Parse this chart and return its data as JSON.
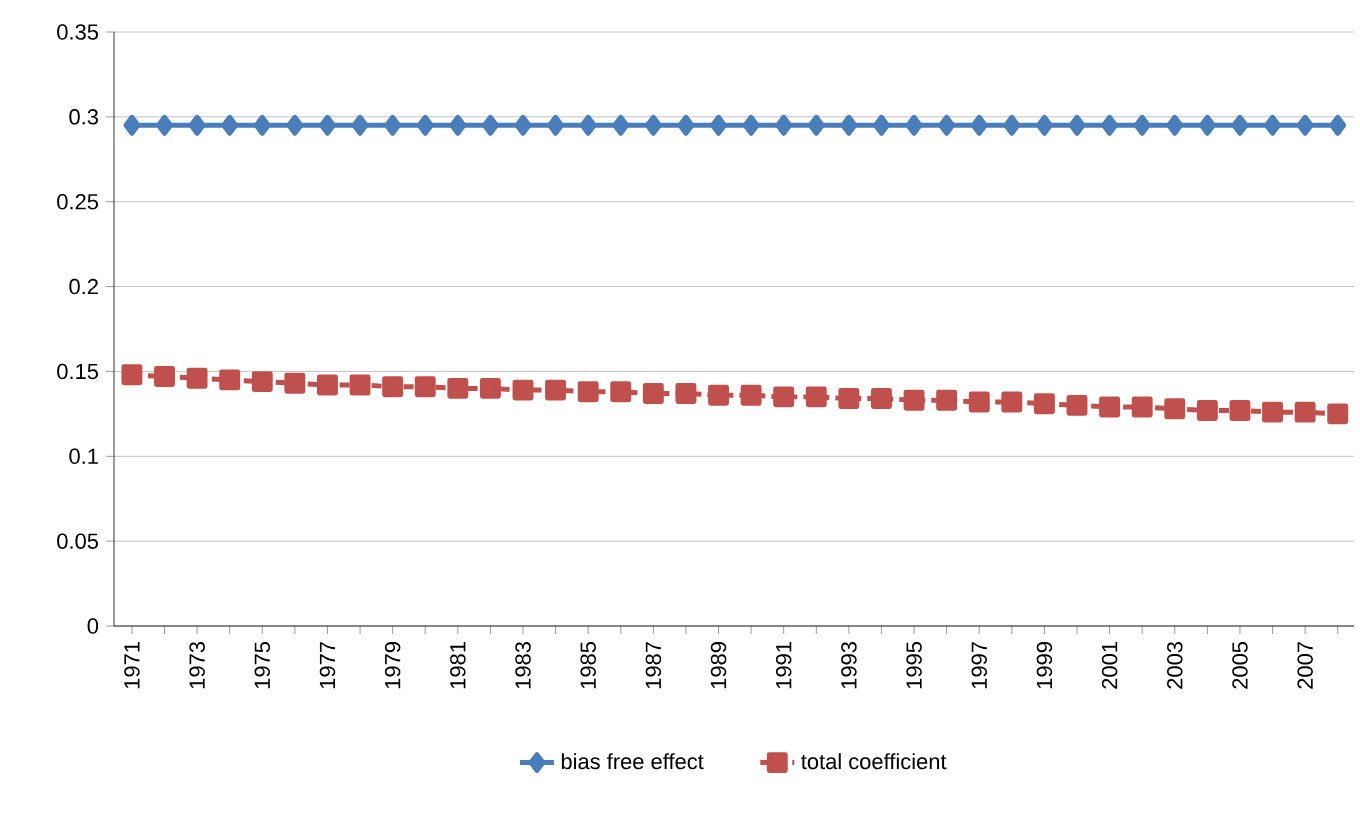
{
  "chart_data": {
    "type": "line",
    "categories": [
      "1971",
      null,
      "1973",
      null,
      "1975",
      null,
      "1977",
      null,
      "1979",
      null,
      "1981",
      null,
      "1983",
      null,
      "1985",
      null,
      "1987",
      null,
      "1989",
      null,
      "1991",
      null,
      "1993",
      null,
      "1995",
      null,
      "1997",
      null,
      "1999",
      null,
      "2001",
      null,
      "2003",
      null,
      "2005",
      null,
      "2007",
      null
    ],
    "series": [
      {
        "name": "bias free effect",
        "color": "#4a7ebb",
        "marker": "diamond",
        "line_style": "solid",
        "values": [
          0.295,
          0.295,
          0.295,
          0.295,
          0.295,
          0.295,
          0.295,
          0.295,
          0.295,
          0.295,
          0.295,
          0.295,
          0.295,
          0.295,
          0.295,
          0.295,
          0.295,
          0.295,
          0.295,
          0.295,
          0.295,
          0.295,
          0.295,
          0.295,
          0.295,
          0.295,
          0.295,
          0.295,
          0.295,
          0.295,
          0.295,
          0.295,
          0.295,
          0.295,
          0.295,
          0.295,
          0.295,
          0.295
        ]
      },
      {
        "name": "total coefficient",
        "color": "#c0504d",
        "marker": "square",
        "line_style": "dashed",
        "values": [
          0.148,
          0.147,
          0.146,
          0.145,
          0.144,
          0.143,
          0.142,
          0.142,
          0.141,
          0.141,
          0.14,
          0.14,
          0.139,
          0.139,
          0.138,
          0.138,
          0.137,
          0.137,
          0.136,
          0.136,
          0.135,
          0.135,
          0.134,
          0.134,
          0.133,
          0.133,
          0.132,
          0.132,
          0.131,
          0.13,
          0.129,
          0.129,
          0.128,
          0.127,
          0.127,
          0.126,
          0.126,
          0.125
        ]
      }
    ],
    "ylim": [
      0,
      0.35
    ],
    "yticks": [
      0,
      0.05,
      0.1,
      0.15,
      0.2,
      0.25,
      0.3,
      0.35
    ],
    "grid": "y",
    "legend": "bottom"
  }
}
